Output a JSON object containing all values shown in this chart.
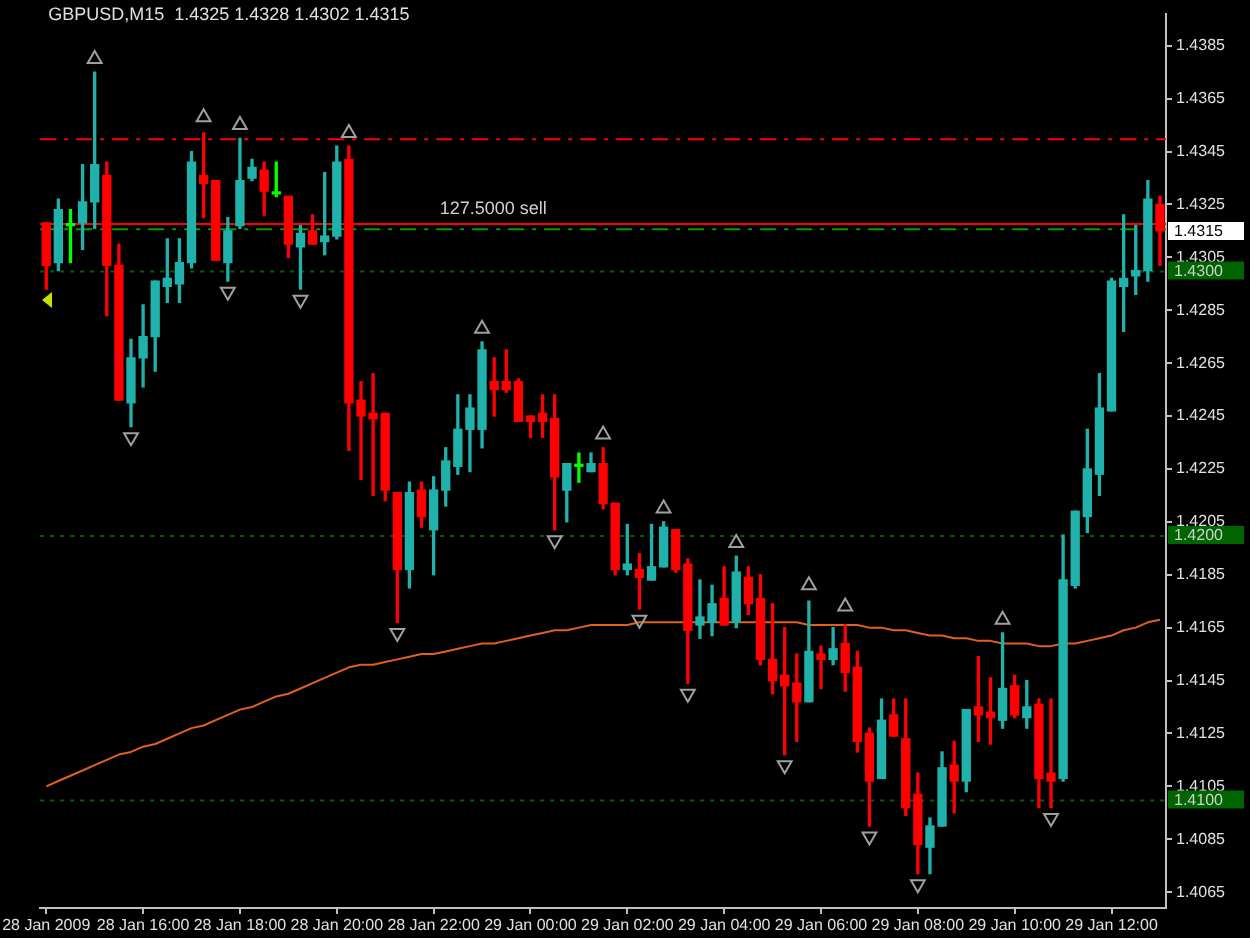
{
  "chart_data": {
    "type": "candlestick",
    "title": "GBPUSD,M15  1.4325 1.4328 1.4302 1.4315",
    "categories": [
      "28 Jan 2009",
      null,
      null,
      null,
      null,
      null,
      null,
      null,
      "28 Jan 16:00",
      null,
      null,
      null,
      null,
      null,
      null,
      null,
      "28 Jan 18:00",
      null,
      null,
      null,
      null,
      null,
      null,
      null,
      "28 Jan 20:00",
      null,
      null,
      null,
      null,
      null,
      null,
      null,
      "28 Jan 22:00",
      null,
      null,
      null,
      null,
      null,
      null,
      null,
      "29 Jan 00:00",
      null,
      null,
      null,
      null,
      null,
      null,
      null,
      "29 Jan 02:00",
      null,
      null,
      null,
      null,
      null,
      null,
      null,
      "29 Jan 04:00",
      null,
      null,
      null,
      null,
      null,
      null,
      null,
      "29 Jan 06:00",
      null,
      null,
      null,
      null,
      null,
      null,
      null,
      "29 Jan 08:00",
      null,
      null,
      null,
      null,
      null,
      null,
      null,
      "29 Jan 10:00",
      null,
      null,
      null,
      null,
      null,
      null,
      null,
      "29 Jan 12:00",
      null,
      null,
      null,
      null
    ],
    "ohlc": [
      [
        1.4318,
        1.4318,
        1.4293,
        1.4302
      ],
      [
        1.4303,
        1.4327,
        1.43,
        1.4323
      ],
      [
        1.4317,
        1.4323,
        1.4303,
        1.4317
      ],
      [
        1.4318,
        1.434,
        1.4308,
        1.4326
      ],
      [
        1.4326,
        1.4375,
        1.4316,
        1.434
      ],
      [
        1.4336,
        1.4341,
        1.4283,
        1.4302
      ],
      [
        1.4302,
        1.431,
        1.4251,
        1.4251
      ],
      [
        1.425,
        1.4274,
        1.4241,
        1.4267
      ],
      [
        1.4267,
        1.4287,
        1.4256,
        1.4275
      ],
      [
        1.4275,
        1.4296,
        1.4262,
        1.4296
      ],
      [
        1.4294,
        1.4312,
        1.4288,
        1.4297
      ],
      [
        1.4295,
        1.4312,
        1.4288,
        1.4303
      ],
      [
        1.4303,
        1.4345,
        1.4301,
        1.4341
      ],
      [
        1.4336,
        1.4352,
        1.432,
        1.4333
      ],
      [
        1.4334,
        1.4334,
        1.4304,
        1.4304
      ],
      [
        1.4303,
        1.432,
        1.4296,
        1.4315
      ],
      [
        1.4317,
        1.435,
        1.4316,
        1.4334
      ],
      [
        1.4335,
        1.4342,
        1.4334,
        1.4339
      ],
      [
        1.4338,
        1.4341,
        1.4321,
        1.433
      ],
      [
        1.4329,
        1.4341,
        1.4328,
        1.4329
      ],
      [
        1.4328,
        1.4328,
        1.4305,
        1.431
      ],
      [
        1.4309,
        1.4317,
        1.4293,
        1.4314
      ],
      [
        1.4315,
        1.4321,
        1.431,
        1.431
      ],
      [
        1.4311,
        1.4337,
        1.4306,
        1.4313
      ],
      [
        1.4313,
        1.4347,
        1.4312,
        1.4341
      ],
      [
        1.4342,
        1.4347,
        1.4232,
        1.425
      ],
      [
        1.4251,
        1.4258,
        1.4221,
        1.4245
      ],
      [
        1.4246,
        1.4261,
        1.4215,
        1.4244
      ],
      [
        1.4246,
        1.4246,
        1.4213,
        1.4217
      ],
      [
        1.4216,
        1.4216,
        1.4167,
        1.4187
      ],
      [
        1.4187,
        1.422,
        1.418,
        1.4216
      ],
      [
        1.4217,
        1.422,
        1.4203,
        1.4207
      ],
      [
        1.4202,
        1.4222,
        1.4185,
        1.4217
      ],
      [
        1.4217,
        1.4233,
        1.4211,
        1.4228
      ],
      [
        1.4226,
        1.4253,
        1.4223,
        1.424
      ],
      [
        1.424,
        1.4253,
        1.4224,
        1.4248
      ],
      [
        1.424,
        1.4273,
        1.4233,
        1.427
      ],
      [
        1.4258,
        1.4267,
        1.4245,
        1.4255
      ],
      [
        1.4258,
        1.427,
        1.4254,
        1.4255
      ],
      [
        1.4258,
        1.4259,
        1.4243,
        1.4243
      ],
      [
        1.4245,
        1.4245,
        1.4237,
        1.4243
      ],
      [
        1.4246,
        1.4253,
        1.4237,
        1.4243
      ],
      [
        1.4244,
        1.4253,
        1.4202,
        1.4222
      ],
      [
        1.4217,
        1.4227,
        1.4205,
        1.4227
      ],
      [
        1.4226,
        1.4231,
        1.422,
        1.4226
      ],
      [
        1.4224,
        1.4231,
        1.4224,
        1.4227
      ],
      [
        1.4227,
        1.4233,
        1.421,
        1.4212
      ],
      [
        1.4212,
        1.4212,
        1.4185,
        1.4187
      ],
      [
        1.4187,
        1.4204,
        1.4185,
        1.4189
      ],
      [
        1.4187,
        1.4193,
        1.4172,
        1.4184
      ],
      [
        1.4183,
        1.4204,
        1.4183,
        1.4188
      ],
      [
        1.4188,
        1.4205,
        1.4188,
        1.4203
      ],
      [
        1.4202,
        1.4202,
        1.4186,
        1.4187
      ],
      [
        1.4189,
        1.4191,
        1.4144,
        1.4164
      ],
      [
        1.4166,
        1.4183,
        1.4161,
        1.4169
      ],
      [
        1.4167,
        1.4181,
        1.4162,
        1.4174
      ],
      [
        1.4176,
        1.4188,
        1.4166,
        1.4166
      ],
      [
        1.4167,
        1.4192,
        1.4165,
        1.4186
      ],
      [
        1.4184,
        1.4188,
        1.417,
        1.4174
      ],
      [
        1.4176,
        1.4185,
        1.4151,
        1.4153
      ],
      [
        1.4153,
        1.4174,
        1.414,
        1.4145
      ],
      [
        1.4147,
        1.4165,
        1.4117,
        1.4143
      ],
      [
        1.4144,
        1.4155,
        1.4122,
        1.4137
      ],
      [
        1.4137,
        1.4175,
        1.4137,
        1.4156
      ],
      [
        1.4155,
        1.4158,
        1.4142,
        1.4153
      ],
      [
        1.4153,
        1.4165,
        1.4151,
        1.4157
      ],
      [
        1.4159,
        1.4166,
        1.4141,
        1.4148
      ],
      [
        1.415,
        1.4156,
        1.4118,
        1.4122
      ],
      [
        1.4125,
        1.4127,
        1.409,
        1.4107
      ],
      [
        1.4108,
        1.4138,
        1.4108,
        1.413
      ],
      [
        1.4132,
        1.4138,
        1.4124,
        1.4124
      ],
      [
        1.4123,
        1.4138,
        1.4094,
        1.4097
      ],
      [
        1.4102,
        1.411,
        1.4072,
        1.4083
      ],
      [
        1.4082,
        1.4093,
        1.4072,
        1.409
      ],
      [
        1.409,
        1.4118,
        1.409,
        1.4112
      ],
      [
        1.4113,
        1.4122,
        1.4095,
        1.4107
      ],
      [
        1.4107,
        1.4134,
        1.4103,
        1.4134
      ],
      [
        1.4135,
        1.4154,
        1.4122,
        1.4132
      ],
      [
        1.4133,
        1.4146,
        1.4121,
        1.4131
      ],
      [
        1.413,
        1.4163,
        1.4127,
        1.4142
      ],
      [
        1.4143,
        1.4147,
        1.4131,
        1.4132
      ],
      [
        1.4131,
        1.4145,
        1.4127,
        1.4135
      ],
      [
        1.4136,
        1.4138,
        1.4097,
        1.4108
      ],
      [
        1.411,
        1.4138,
        1.4097,
        1.4107
      ],
      [
        1.4108,
        1.42,
        1.4107,
        1.4183
      ],
      [
        1.4181,
        1.4209,
        1.418,
        1.4209
      ],
      [
        1.4207,
        1.424,
        1.4201,
        1.4225
      ],
      [
        1.4223,
        1.4261,
        1.4215,
        1.4248
      ],
      [
        1.4247,
        1.4297,
        1.4247,
        1.4296
      ],
      [
        1.4294,
        1.4321,
        1.4277,
        1.4297
      ],
      [
        1.4298,
        1.4317,
        1.4291,
        1.43
      ],
      [
        1.43,
        1.4334,
        1.4296,
        1.4327
      ],
      [
        1.4325,
        1.4328,
        1.4302,
        1.4315
      ]
    ],
    "colors": [
      "#ff0000",
      "#20b2aa",
      "#00ff00",
      "#20b2aa",
      "#20b2aa",
      "#ff0000",
      "#ff0000",
      "#20b2aa",
      "#20b2aa",
      "#20b2aa",
      "#20b2aa",
      "#20b2aa",
      "#20b2aa",
      "#ff0000",
      "#ff0000",
      "#20b2aa",
      "#20b2aa",
      "#20b2aa",
      "#ff0000",
      "#00ff00",
      "#ff0000",
      "#20b2aa",
      "#ff0000",
      "#20b2aa",
      "#20b2aa",
      "#ff0000",
      "#ff0000",
      "#ff0000",
      "#ff0000",
      "#ff0000",
      "#20b2aa",
      "#ff0000",
      "#20b2aa",
      "#20b2aa",
      "#20b2aa",
      "#20b2aa",
      "#20b2aa",
      "#ff0000",
      "#ff0000",
      "#ff0000",
      "#ff0000",
      "#ff0000",
      "#ff0000",
      "#20b2aa",
      "#00ff00",
      "#20b2aa",
      "#ff0000",
      "#ff0000",
      "#20b2aa",
      "#ff0000",
      "#20b2aa",
      "#20b2aa",
      "#ff0000",
      "#ff0000",
      "#20b2aa",
      "#20b2aa",
      "#ff0000",
      "#20b2aa",
      "#ff0000",
      "#ff0000",
      "#ff0000",
      "#ff0000",
      "#ff0000",
      "#20b2aa",
      "#ff0000",
      "#20b2aa",
      "#ff0000",
      "#ff0000",
      "#ff0000",
      "#20b2aa",
      "#ff0000",
      "#ff0000",
      "#ff0000",
      "#20b2aa",
      "#20b2aa",
      "#ff0000",
      "#20b2aa",
      "#ff0000",
      "#ff0000",
      "#20b2aa",
      "#ff0000",
      "#20b2aa",
      "#ff0000",
      "#ff0000",
      "#20b2aa",
      "#20b2aa",
      "#20b2aa",
      "#20b2aa",
      "#20b2aa",
      "#20b2aa",
      "#20b2aa",
      "#20b2aa",
      "#ff0000"
    ],
    "series": [
      {
        "type": "line",
        "color": "#e0601e",
        "values": [
          1.4105,
          1.4107,
          1.4109,
          1.4111,
          1.4113,
          1.4115,
          1.4117,
          1.4118,
          1.412,
          1.4121,
          1.4123,
          1.4125,
          1.4127,
          1.4128,
          1.413,
          1.4132,
          1.4134,
          1.4135,
          1.4137,
          1.4139,
          1.414,
          1.4142,
          1.4144,
          1.4146,
          1.4148,
          1.415,
          1.4151,
          1.4151,
          1.4152,
          1.4153,
          1.4154,
          1.4155,
          1.4155,
          1.4156,
          1.4157,
          1.4158,
          1.4159,
          1.4159,
          1.416,
          1.4161,
          1.4162,
          1.4163,
          1.4164,
          1.4164,
          1.4165,
          1.4166,
          1.4166,
          1.4166,
          1.4166,
          1.4167,
          1.4167,
          1.4167,
          1.4167,
          1.4167,
          1.4167,
          1.4167,
          1.4167,
          1.4167,
          1.4167,
          1.4167,
          1.4167,
          1.4167,
          1.4167,
          1.4166,
          1.4166,
          1.4166,
          1.4166,
          1.4166,
          1.4165,
          1.4165,
          1.4164,
          1.4164,
          1.4163,
          1.4162,
          1.4162,
          1.4161,
          1.4161,
          1.416,
          1.416,
          1.4159,
          1.4159,
          1.4159,
          1.4158,
          1.4158,
          1.4159,
          1.4159,
          1.416,
          1.4161,
          1.4162,
          1.4164,
          1.4165,
          1.4167,
          1.4168
        ]
      },
      {
        "type": "scatter",
        "color": "#a0a0a0",
        "marker": "triangle",
        "values": [
          null,
          null,
          null,
          null,
          1.438,
          null,
          null,
          null,
          null,
          null,
          null,
          null,
          null,
          1.4358,
          null,
          null,
          1.4355,
          null,
          null,
          null,
          null,
          null,
          null,
          null,
          null,
          1.4352,
          null,
          null,
          null,
          null,
          null,
          null,
          null,
          null,
          null,
          null,
          1.4278,
          null,
          null,
          null,
          null,
          null,
          null,
          null,
          null,
          null,
          1.4238,
          null,
          null,
          null,
          null,
          1.421,
          null,
          null,
          null,
          null,
          null,
          1.4197,
          null,
          null,
          null,
          null,
          null,
          1.4181,
          null,
          null,
          1.4173,
          null,
          null,
          null,
          null,
          null,
          null,
          null,
          null,
          null,
          null,
          null,
          null,
          1.4168,
          null,
          null,
          null,
          null,
          null,
          null,
          null,
          null,
          null,
          null,
          null,
          null,
          null
        ]
      },
      {
        "type": "scatter",
        "color": "#a0a0a0",
        "marker": "triangle",
        "values": [
          null,
          null,
          null,
          null,
          null,
          null,
          null,
          1.4237,
          null,
          null,
          null,
          null,
          null,
          null,
          null,
          1.4292,
          null,
          null,
          null,
          null,
          null,
          1.4289,
          null,
          null,
          null,
          null,
          null,
          null,
          null,
          1.4163,
          null,
          null,
          null,
          null,
          null,
          null,
          null,
          null,
          null,
          null,
          null,
          null,
          1.4198,
          null,
          null,
          null,
          null,
          null,
          null,
          1.4168,
          null,
          null,
          null,
          1.414,
          null,
          null,
          null,
          null,
          null,
          null,
          null,
          1.4113,
          null,
          null,
          null,
          null,
          null,
          null,
          1.4086,
          null,
          null,
          null,
          1.4068,
          null,
          null,
          null,
          null,
          null,
          null,
          null,
          null,
          null,
          null,
          1.4093,
          null,
          null,
          null,
          null,
          null,
          null,
          null,
          null,
          null
        ]
      }
    ],
    "ylim": [
      1.4059,
      1.4397
    ],
    "yticks": [
      1.4385,
      1.4365,
      1.4345,
      1.4325,
      1.4305,
      1.4285,
      1.4265,
      1.4245,
      1.4225,
      1.4205,
      1.4185,
      1.4165,
      1.4145,
      1.4125,
      1.4105,
      1.4085,
      1.4065
    ],
    "ref_lines": [
      {
        "axis": "y",
        "value": 1.435,
        "color": "#ff0000",
        "line_style": "dashed"
      },
      {
        "axis": "y",
        "value": 1.4318,
        "color": "#ff0000",
        "line_style": "solid"
      },
      {
        "axis": "y",
        "value": 1.4316,
        "color": "#00a000",
        "line_style": "dashed"
      },
      {
        "axis": "y",
        "value": 1.43,
        "label": "1.4300",
        "color": "#006400",
        "line_style": "dotted"
      },
      {
        "axis": "y",
        "value": 1.42,
        "label": "1.4200",
        "color": "#006400",
        "line_style": "dotted"
      },
      {
        "axis": "y",
        "value": 1.41,
        "label": "1.4100",
        "color": "#006400",
        "line_style": "dotted"
      }
    ],
    "annotations": [
      {
        "text": "127.5000 sell",
        "x": "28 Jan 22:00",
        "y": 1.4317
      },
      "1.4315"
    ],
    "grid": false,
    "legend": false
  }
}
